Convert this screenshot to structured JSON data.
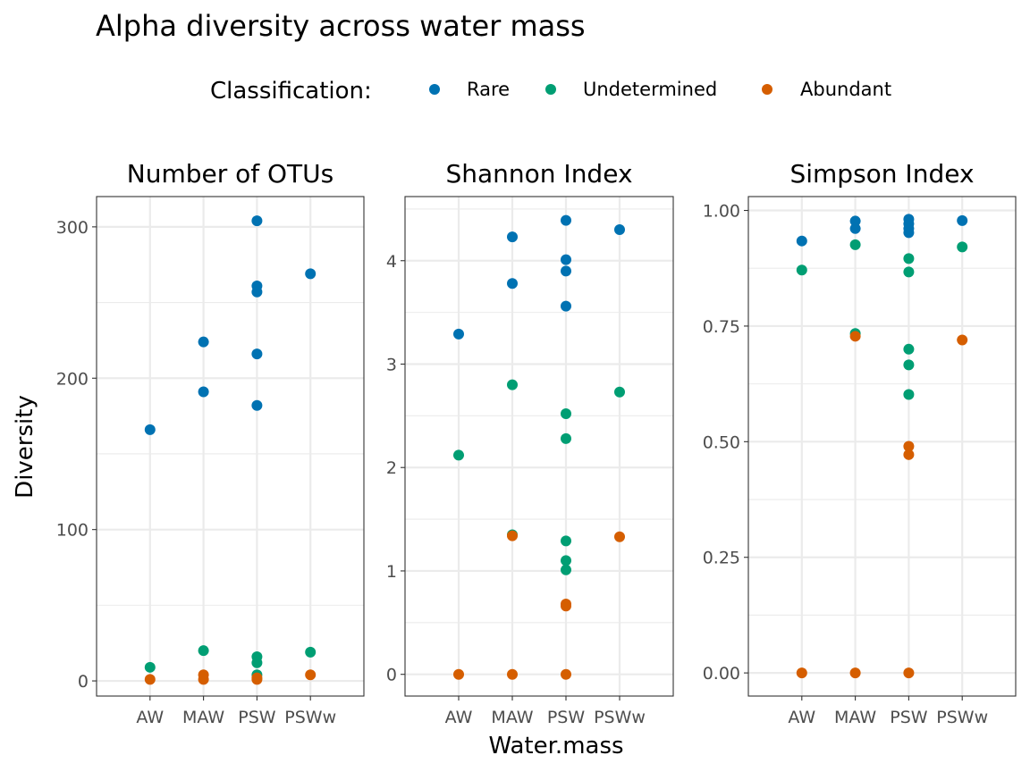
{
  "chart_data": {
    "type": "scatter",
    "title": "Alpha diversity across water mass",
    "xlabel": "Water.mass",
    "ylabel": "Diversity",
    "legend": {
      "title": "Classification:",
      "placement": "top",
      "entries": [
        {
          "name": "Rare",
          "color": "#0072B2"
        },
        {
          "name": "Undetermined",
          "color": "#009E73"
        },
        {
          "name": "Abundant",
          "color": "#D55E00"
        }
      ]
    },
    "categories": [
      "AW",
      "MAW",
      "PSW",
      "PSWw"
    ],
    "grid": true,
    "facets": [
      {
        "title": "Number of OTUs",
        "ylim": [
          -10,
          320
        ],
        "yticks": [
          0,
          100,
          200,
          300
        ],
        "yminor": [
          50,
          150,
          250
        ],
        "yticklabels": [
          "0",
          "100",
          "200",
          "300"
        ],
        "series": [
          {
            "name": "Rare",
            "points": [
              [
                "AW",
                166
              ],
              [
                "MAW",
                224
              ],
              [
                "MAW",
                191
              ],
              [
                "PSW",
                304
              ],
              [
                "PSW",
                261
              ],
              [
                "PSW",
                257
              ],
              [
                "PSW",
                216
              ],
              [
                "PSW",
                182
              ],
              [
                "PSWw",
                269
              ]
            ]
          },
          {
            "name": "Undetermined",
            "points": [
              [
                "AW",
                9
              ],
              [
                "MAW",
                20
              ],
              [
                "PSW",
                16
              ],
              [
                "PSW",
                12
              ],
              [
                "PSW",
                4
              ],
              [
                "PSWw",
                19
              ]
            ]
          },
          {
            "name": "Abundant",
            "points": [
              [
                "AW",
                1
              ],
              [
                "MAW",
                1
              ],
              [
                "MAW",
                4
              ],
              [
                "PSW",
                1
              ],
              [
                "PSW",
                2
              ],
              [
                "PSWw",
                4
              ]
            ]
          }
        ]
      },
      {
        "title": "Shannon Index",
        "ylim": [
          -0.21,
          4.62
        ],
        "yticks": [
          0,
          1,
          2,
          3,
          4
        ],
        "yminor": [
          0.5,
          1.5,
          2.5,
          3.5,
          4.5
        ],
        "yticklabels": [
          "0",
          "1",
          "2",
          "3",
          "4"
        ],
        "series": [
          {
            "name": "Rare",
            "points": [
              [
                "AW",
                3.29
              ],
              [
                "MAW",
                4.23
              ],
              [
                "MAW",
                3.78
              ],
              [
                "PSW",
                4.39
              ],
              [
                "PSW",
                4.01
              ],
              [
                "PSW",
                3.9
              ],
              [
                "PSW",
                3.56
              ],
              [
                "PSWw",
                4.3
              ]
            ]
          },
          {
            "name": "Undetermined",
            "points": [
              [
                "AW",
                2.12
              ],
              [
                "MAW",
                2.8
              ],
              [
                "MAW",
                1.35
              ],
              [
                "PSW",
                2.52
              ],
              [
                "PSW",
                2.28
              ],
              [
                "PSW",
                1.29
              ],
              [
                "PSW",
                1.1
              ],
              [
                "PSW",
                1.01
              ],
              [
                "PSWw",
                2.73
              ]
            ]
          },
          {
            "name": "Abundant",
            "points": [
              [
                "AW",
                0
              ],
              [
                "MAW",
                0
              ],
              [
                "MAW",
                1.34
              ],
              [
                "PSW",
                0
              ],
              [
                "PSW",
                0.68
              ],
              [
                "PSW",
                0.66
              ],
              [
                "PSWw",
                1.33
              ]
            ]
          }
        ]
      },
      {
        "title": "Simpson Index",
        "ylim": [
          -0.05,
          1.03
        ],
        "yticks": [
          0,
          0.25,
          0.5,
          0.75,
          1
        ],
        "yminor": [
          0.125,
          0.375,
          0.625,
          0.875
        ],
        "yticklabels": [
          "0.00",
          "0.25",
          "0.50",
          "0.75",
          "1.00"
        ],
        "series": [
          {
            "name": "Rare",
            "points": [
              [
                "AW",
                0.934
              ],
              [
                "MAW",
                0.977
              ],
              [
                "MAW",
                0.961
              ],
              [
                "PSW",
                0.981
              ],
              [
                "PSW",
                0.971
              ],
              [
                "PSW",
                0.961
              ],
              [
                "PSW",
                0.952
              ],
              [
                "PSWw",
                0.978
              ]
            ]
          },
          {
            "name": "Undetermined",
            "points": [
              [
                "AW",
                0.871
              ],
              [
                "MAW",
                0.926
              ],
              [
                "MAW",
                0.734
              ],
              [
                "PSW",
                0.896
              ],
              [
                "PSW",
                0.867
              ],
              [
                "PSW",
                0.7
              ],
              [
                "PSW",
                0.666
              ],
              [
                "PSW",
                0.602
              ],
              [
                "PSWw",
                0.921
              ]
            ]
          },
          {
            "name": "Abundant",
            "points": [
              [
                "AW",
                0
              ],
              [
                "MAW",
                0
              ],
              [
                "MAW",
                0.728
              ],
              [
                "PSW",
                0
              ],
              [
                "PSW",
                0.49
              ],
              [
                "PSW",
                0.472
              ],
              [
                "PSWw",
                0.72
              ]
            ]
          }
        ]
      }
    ]
  }
}
